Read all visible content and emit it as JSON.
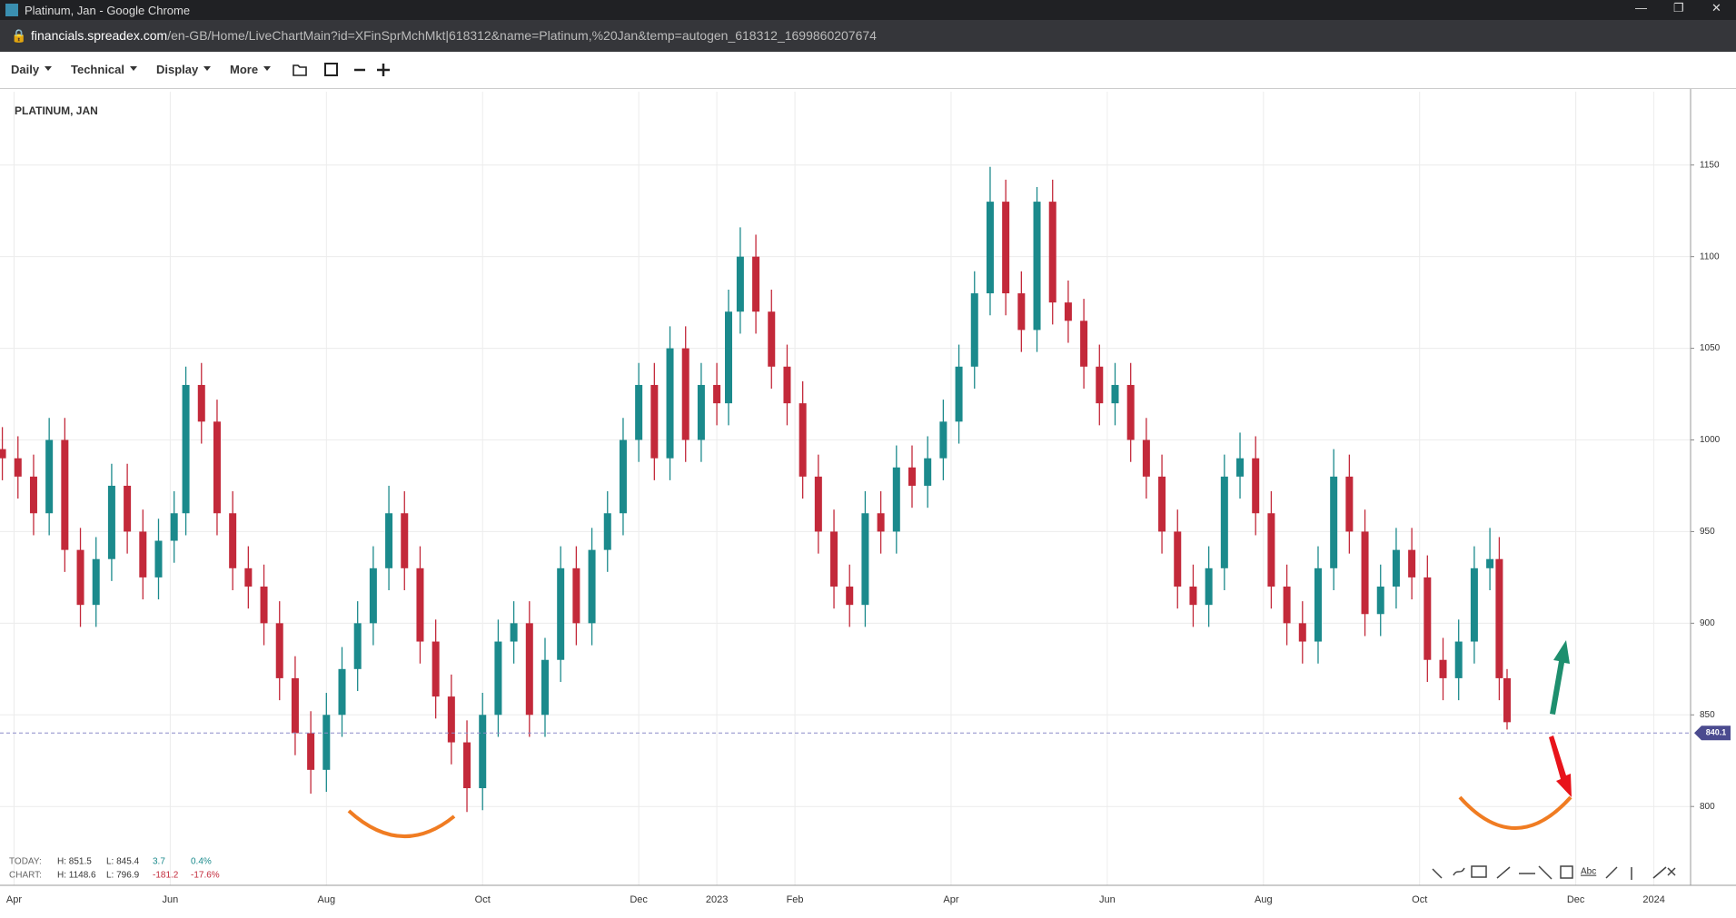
{
  "ui": {
    "window_title": "Platinum, Jan - Google Chrome",
    "url_host": "financials.spreadex.com",
    "url_path": "/en-GB/Home/LiveChartMain?id=XFinSprMchMkt|618312&name=Platinum,%20Jan&temp=autogen_618312_1699860207674",
    "menus": [
      "Daily",
      "Technical",
      "Display",
      "More"
    ],
    "drawing_tool_text": "Abc",
    "stats": [
      [
        "TODAY:",
        "H: 851.5",
        "L: 845.4",
        "3.7",
        "0.4%"
      ],
      [
        "CHART:",
        "H: 1148.6",
        "L: 796.9",
        "-181.2",
        "-17.6%"
      ]
    ]
  },
  "chart_data": {
    "type": "candlestick",
    "title": "PLATINUM, JAN",
    "up_color": "#1b8a8c",
    "down_color": "#c3293a",
    "grid": true,
    "x": [
      0.85,
      1.05,
      1.25,
      1.45,
      1.65,
      1.85,
      2.05,
      2.25,
      2.45,
      2.65,
      2.85,
      3.05,
      3.2,
      3.4,
      3.6,
      3.8,
      4.0,
      4.2,
      4.4,
      4.6,
      4.8,
      5.0,
      5.2,
      5.4,
      5.6,
      5.8,
      6.0,
      6.2,
      6.4,
      6.6,
      6.8,
      7.0,
      7.2,
      7.4,
      7.6,
      7.8,
      8.0,
      8.2,
      8.4,
      8.6,
      8.8,
      9.0,
      9.2,
      9.4,
      9.6,
      9.8,
      10.0,
      10.15,
      10.3,
      10.5,
      10.7,
      10.9,
      11.1,
      11.3,
      11.5,
      11.7,
      11.9,
      12.1,
      12.3,
      12.5,
      12.7,
      12.9,
      13.1,
      13.3,
      13.5,
      13.7,
      13.9,
      14.1,
      14.3,
      14.5,
      14.7,
      14.9,
      15.1,
      15.3,
      15.5,
      15.7,
      15.9,
      16.1,
      16.3,
      16.5,
      16.7,
      16.9,
      17.1,
      17.3,
      17.5,
      17.7,
      17.9,
      18.1,
      18.3,
      18.5,
      18.7,
      18.9,
      19.1,
      19.3,
      19.5,
      19.7,
      19.9,
      20.02,
      20.12
    ],
    "open": [
      995,
      990,
      980,
      960,
      1000,
      940,
      910,
      935,
      975,
      950,
      925,
      945,
      960,
      1030,
      1010,
      960,
      930,
      920,
      900,
      870,
      840,
      820,
      850,
      875,
      900,
      930,
      960,
      930,
      890,
      860,
      835,
      810,
      850,
      890,
      900,
      850,
      880,
      930,
      900,
      940,
      960,
      1000,
      1030,
      990,
      1050,
      1000,
      1030,
      1020,
      1070,
      1100,
      1070,
      1040,
      1020,
      980,
      950,
      920,
      910,
      960,
      950,
      985,
      975,
      990,
      1010,
      1040,
      1080,
      1130,
      1080,
      1060,
      1130,
      1075,
      1065,
      1040,
      1020,
      1030,
      1000,
      980,
      950,
      920,
      910,
      930,
      980,
      990,
      960,
      920,
      900,
      890,
      930,
      980,
      950,
      905,
      920,
      940,
      925,
      880,
      870,
      890,
      930,
      935,
      870
    ],
    "high": [
      1007,
      1002,
      992,
      1012,
      1012,
      952,
      947,
      987,
      987,
      962,
      957,
      972,
      1040,
      1042,
      1022,
      972,
      942,
      932,
      912,
      882,
      852,
      862,
      887,
      912,
      942,
      975,
      972,
      942,
      902,
      872,
      847,
      862,
      902,
      912,
      912,
      892,
      942,
      942,
      952,
      972,
      1012,
      1042,
      1042,
      1062,
      1062,
      1042,
      1042,
      1082,
      1116,
      1112,
      1082,
      1052,
      1032,
      992,
      962,
      932,
      972,
      972,
      997,
      997,
      1002,
      1022,
      1052,
      1092,
      1149,
      1142,
      1092,
      1138,
      1142,
      1087,
      1077,
      1052,
      1042,
      1042,
      1012,
      992,
      962,
      932,
      942,
      992,
      1004,
      1002,
      972,
      932,
      912,
      942,
      995,
      992,
      962,
      932,
      952,
      952,
      937,
      892,
      902,
      942,
      952,
      947,
      875
    ],
    "low": [
      978,
      968,
      948,
      948,
      928,
      898,
      898,
      923,
      938,
      913,
      913,
      933,
      948,
      998,
      948,
      918,
      908,
      888,
      858,
      828,
      807,
      808,
      838,
      863,
      888,
      918,
      918,
      878,
      848,
      823,
      797,
      798,
      838,
      878,
      838,
      838,
      868,
      888,
      888,
      928,
      948,
      988,
      978,
      978,
      988,
      988,
      1008,
      1008,
      1058,
      1058,
      1028,
      1008,
      968,
      938,
      908,
      898,
      898,
      938,
      938,
      963,
      963,
      978,
      998,
      1028,
      1068,
      1068,
      1048,
      1048,
      1063,
      1053,
      1028,
      1008,
      1008,
      988,
      968,
      938,
      908,
      898,
      898,
      918,
      968,
      948,
      908,
      888,
      878,
      878,
      918,
      938,
      893,
      893,
      908,
      913,
      868,
      858,
      858,
      878,
      918,
      858,
      842
    ],
    "close": [
      990,
      980,
      960,
      1000,
      940,
      910,
      935,
      975,
      950,
      925,
      945,
      960,
      1030,
      1010,
      960,
      930,
      920,
      900,
      870,
      840,
      820,
      850,
      875,
      900,
      930,
      960,
      930,
      890,
      860,
      835,
      810,
      850,
      890,
      900,
      850,
      880,
      930,
      900,
      940,
      960,
      1000,
      1030,
      990,
      1050,
      1000,
      1030,
      1020,
      1070,
      1100,
      1070,
      1040,
      1020,
      980,
      950,
      920,
      910,
      960,
      950,
      985,
      975,
      990,
      1010,
      1040,
      1080,
      1130,
      1080,
      1060,
      1130,
      1075,
      1065,
      1040,
      1020,
      1030,
      1000,
      980,
      950,
      920,
      910,
      930,
      980,
      990,
      960,
      920,
      900,
      890,
      930,
      980,
      950,
      905,
      920,
      940,
      925,
      880,
      870,
      890,
      930,
      935,
      870,
      846
    ],
    "current_price": 840.1,
    "current_price_color": "#4b4b8f",
    "xlim": [
      0.82,
      22.47
    ],
    "ylim": [
      757,
      1190
    ],
    "xticks": [
      {
        "value": 1,
        "label": "Apr"
      },
      {
        "value": 3,
        "label": "Jun"
      },
      {
        "value": 5,
        "label": "Aug"
      },
      {
        "value": 7,
        "label": "Oct"
      },
      {
        "value": 9,
        "label": "Dec"
      },
      {
        "value": 10,
        "label": "2023"
      },
      {
        "value": 11,
        "label": "Feb"
      },
      {
        "value": 13,
        "label": "Apr"
      },
      {
        "value": 15,
        "label": "Jun"
      },
      {
        "value": 17,
        "label": "Aug"
      },
      {
        "value": 19,
        "label": "Oct"
      },
      {
        "value": 21,
        "label": "Dec"
      },
      {
        "value": 22,
        "label": "2024"
      }
    ],
    "yticks": [
      800,
      850,
      900,
      950,
      1000,
      1050,
      1100,
      1150
    ]
  }
}
